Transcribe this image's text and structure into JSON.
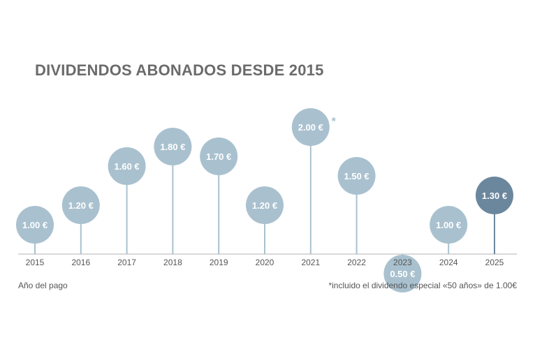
{
  "chart_data": {
    "type": "lollipop",
    "title": "DIVIDENDOS ABONADOS DESDE 2015",
    "xlabel": "Año del pago",
    "ylabel": "",
    "categories": [
      "2015",
      "2016",
      "2017",
      "2018",
      "2019",
      "2020",
      "2021",
      "2022",
      "2023",
      "2024",
      "2025"
    ],
    "values": [
      1.0,
      1.2,
      1.6,
      1.8,
      1.7,
      1.2,
      2.0,
      1.5,
      0.5,
      1.0,
      1.3
    ],
    "labels": [
      "1.00 €",
      "1.20 €",
      "1.60 €",
      "1.80 €",
      "1.70 €",
      "1.20 €",
      "2.00 €",
      "1.50 €",
      "0.50 €",
      "1.00 €",
      "1.30 €"
    ],
    "annotation": {
      "category": "2021",
      "marker": "*"
    },
    "highlight": "2025",
    "colors": {
      "normal": "#a9c1cf",
      "highlight": "#6b879d",
      "axis": "#c2c2c2",
      "title": "#6b6b6b",
      "tick": "#555555"
    }
  },
  "footnote": {
    "left": "Año del pago",
    "right_marker": "*",
    "right_text": "incluido el dividendo especial «50 años» de 1.00€"
  }
}
